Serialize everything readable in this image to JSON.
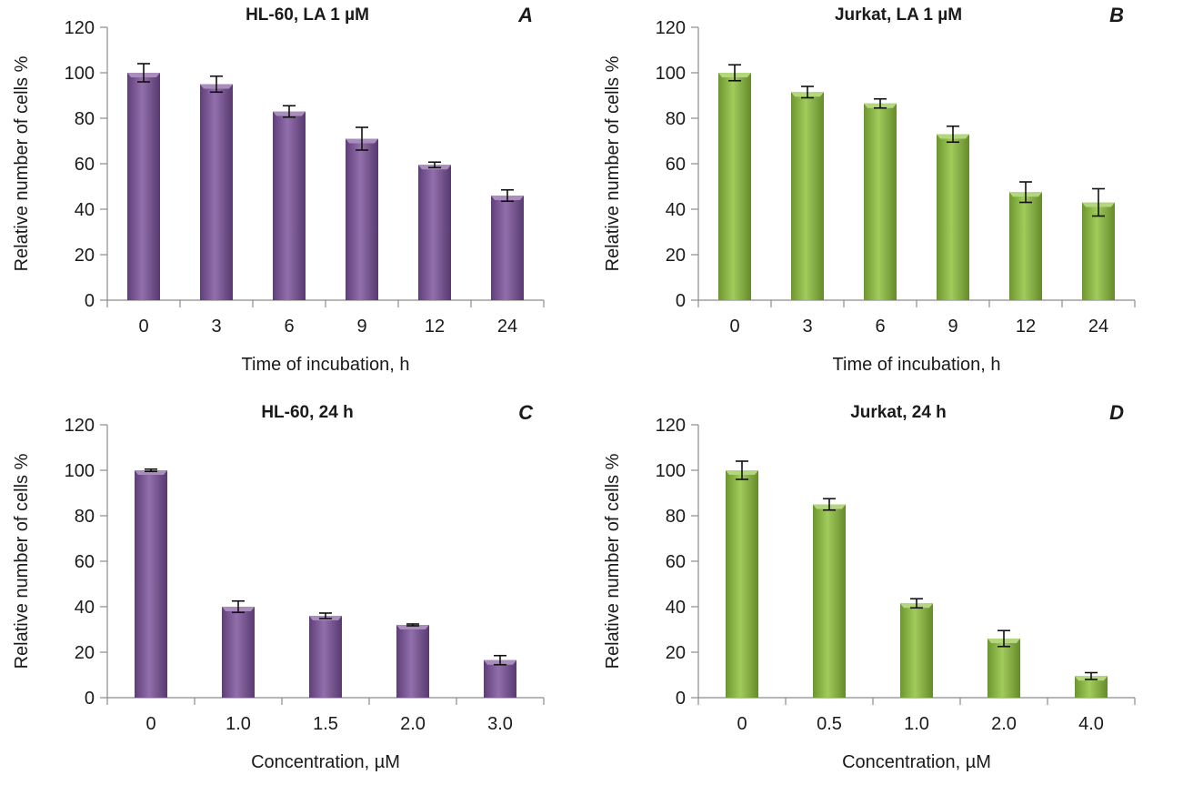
{
  "chart_data": [
    {
      "panel_letter": "A",
      "type": "bar",
      "title": "HL-60, LA 1 µM",
      "xlabel": "Time of incubation, h",
      "ylabel": "Relative number of cells %",
      "categories": [
        "0",
        "3",
        "6",
        "9",
        "12",
        "24"
      ],
      "values": [
        100,
        95,
        83,
        71,
        59.5,
        46
      ],
      "errors": [
        4,
        3.5,
        2.5,
        5,
        1.2,
        2.5
      ],
      "ylim": [
        0,
        120
      ],
      "yticks": [
        "0",
        "20",
        "40",
        "60",
        "80",
        "100",
        "120"
      ],
      "color": "#7a4f9a",
      "grid": false
    },
    {
      "panel_letter": "B",
      "type": "bar",
      "title": "Jurkat, LA 1 µM",
      "xlabel": "Time of incubation, h",
      "ylabel": "Relative number of cells %",
      "categories": [
        "0",
        "3",
        "6",
        "9",
        "12",
        "24"
      ],
      "values": [
        100,
        91.5,
        86.5,
        73,
        47.5,
        43
      ],
      "errors": [
        3.5,
        2.5,
        2,
        3.5,
        4.5,
        6
      ],
      "ylim": [
        0,
        120
      ],
      "yticks": [
        "0",
        "20",
        "40",
        "60",
        "80",
        "100",
        "120"
      ],
      "color": "#8cc03a",
      "grid": false
    },
    {
      "panel_letter": "C",
      "type": "bar",
      "title": "HL-60, 24 h",
      "xlabel": "Concentration, µM",
      "ylabel": "Relative number of cells %",
      "categories": [
        "0",
        "1.0",
        "1.5",
        "2.0",
        "3.0"
      ],
      "values": [
        100,
        40,
        36,
        32,
        16.5
      ],
      "errors": [
        0.5,
        2.5,
        1.2,
        0.4,
        2
      ],
      "ylim": [
        0,
        120
      ],
      "yticks": [
        "0",
        "20",
        "40",
        "60",
        "80",
        "100",
        "120"
      ],
      "color": "#7a4f9a",
      "grid": false
    },
    {
      "panel_letter": "D",
      "type": "bar",
      "title": "Jurkat, 24 h",
      "xlabel": "Concentration, µM",
      "ylabel": "Relative number of cells %",
      "categories": [
        "0",
        "0.5",
        "1.0",
        "2.0",
        "4.0"
      ],
      "values": [
        100,
        85,
        41.5,
        26,
        9.5
      ],
      "errors": [
        4,
        2.5,
        2,
        3.5,
        1.5
      ],
      "ylim": [
        0,
        120
      ],
      "yticks": [
        "0",
        "20",
        "40",
        "60",
        "80",
        "100",
        "120"
      ],
      "color": "#8cc03a",
      "grid": false
    }
  ]
}
